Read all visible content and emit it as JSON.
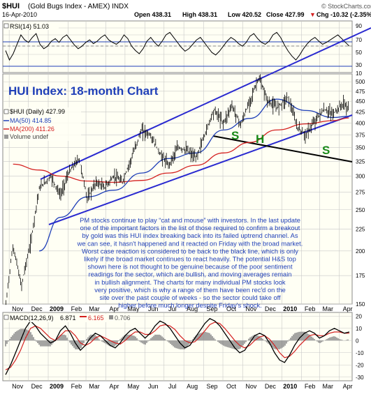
{
  "header": {
    "symbol": "$HUI",
    "name": "(Gold Bugs Index - AMEX) INDX",
    "date": "16-Apr-2010",
    "open": "Open 438.31",
    "high": "High 438.31",
    "low": "Low 420.52",
    "close": "Close 427.99",
    "change": "Chg -10.32 (-2.35%)",
    "change_arrow": "▼",
    "copyright": "© StockCharts.com"
  },
  "rsi_panel": {
    "label": "RSI(14) 51.03",
    "ticks": [
      "90",
      "70",
      "50",
      "30",
      "10"
    ]
  },
  "main_panel": {
    "title": "HUI Index: 18-month Chart",
    "legend": [
      {
        "text": "$HUI (Daily) 427.99",
        "color": "#000000"
      },
      {
        "text": "MA(50) 414.85",
        "color": "#1f3fb8"
      },
      {
        "text": "MA(200) 411.26",
        "color": "#d42020"
      },
      {
        "text": "Volume undef",
        "color": "#888888"
      }
    ],
    "ticks": [
      "500",
      "475",
      "450",
      "425",
      "400",
      "375",
      "350",
      "325",
      "300",
      "275",
      "250",
      "225",
      "200",
      "175",
      "150"
    ],
    "pattern_labels": [
      "S",
      "H",
      "S"
    ],
    "commentary": [
      "PM stocks continue to play “cat and mouse” with investors. In the last update",
      "one of the important factors in the list of those required to confirm a breakout",
      "by gold was this HUI index breaking back into its failed uptrend channel. As",
      "we can see, it hasn't happened and it reacted on Friday with the broad market.",
      "Worst case reaction is considered to be back to the black line, which is only",
      "likely if the broad market continues to react heavily. The potential H&S top",
      "shown here is not thought to be genuine because of the poor sentiment",
      "readings for the sector, which are bullish, and moving averages remain",
      "in bullish alignment. The charts for many individual PM stocks look",
      "very positive, which is why a range of them have been rec'd on the",
      "site over the past couple of weeks - so the sector could take off",
      "higher before much longer despite Friday's shock."
    ]
  },
  "macd_panel": {
    "label_prefix": "MACD(12,26,9)",
    "value1": "6.871",
    "value2": "6.165",
    "value3": "0.706",
    "ticks": [
      "20",
      "10",
      "0",
      "-10",
      "-20",
      "-30"
    ]
  },
  "x_axis": {
    "labels": [
      "Nov",
      "Dec",
      "2009",
      "Feb",
      "Mar",
      "Apr",
      "May",
      "Jun",
      "Jul",
      "Aug",
      "Sep",
      "Oct",
      "Nov",
      "Dec",
      "2010",
      "Feb",
      "Mar",
      "Apr"
    ]
  },
  "colors": {
    "panel_bg": "#fffff4",
    "grid": "#c8c8c8",
    "price": "#000000",
    "ma50": "#1f3fb8",
    "ma200": "#d42020",
    "channel": "#2a2ad0",
    "black_line": "#000000",
    "title": "#1f3fb8",
    "commentary": "#1f3fb8",
    "pattern": "#1a8a1a",
    "rsi": "#000000",
    "rsi_bands": "#1f3fb8",
    "macd_line": "#000000",
    "macd_signal": "#d42020",
    "histogram": "#8d8d8d"
  },
  "chart_data": {
    "type": "line",
    "title": "HUI Index: 18-month Chart",
    "y_scale": "log",
    "ylim": [
      150,
      510
    ],
    "x_range": [
      "Nov 2008",
      "Apr 2010"
    ],
    "series": [
      {
        "name": "$HUI (Daily)",
        "points": [
          [
            "2008-10-27",
            150
          ],
          [
            "2008-11-07",
            205
          ],
          [
            "2008-11-20",
            165
          ],
          [
            "2008-12-05",
            210
          ],
          [
            "2008-12-18",
            280
          ],
          [
            "2009-01-05",
            300
          ],
          [
            "2009-01-20",
            270
          ],
          [
            "2009-02-02",
            305
          ],
          [
            "2009-02-18",
            330
          ],
          [
            "2009-03-03",
            265
          ],
          [
            "2009-03-17",
            290
          ],
          [
            "2009-03-30",
            282
          ],
          [
            "2009-04-14",
            300
          ],
          [
            "2009-04-27",
            290
          ],
          [
            "2009-05-11",
            330
          ],
          [
            "2009-05-27",
            385
          ],
          [
            "2009-06-09",
            375
          ],
          [
            "2009-06-24",
            340
          ],
          [
            "2009-07-08",
            318
          ],
          [
            "2009-07-23",
            350
          ],
          [
            "2009-08-06",
            345
          ],
          [
            "2009-08-20",
            330
          ],
          [
            "2009-09-04",
            380
          ],
          [
            "2009-09-17",
            430
          ],
          [
            "2009-10-02",
            400
          ],
          [
            "2009-10-15",
            440
          ],
          [
            "2009-10-29",
            395
          ],
          [
            "2009-11-12",
            450
          ],
          [
            "2009-11-26",
            510
          ],
          [
            "2009-12-10",
            450
          ],
          [
            "2009-12-24",
            435
          ],
          [
            "2010-01-11",
            460
          ],
          [
            "2010-01-25",
            390
          ],
          [
            "2010-02-08",
            375
          ],
          [
            "2010-02-22",
            405
          ],
          [
            "2010-03-08",
            430
          ],
          [
            "2010-03-22",
            420
          ],
          [
            "2010-04-08",
            445
          ],
          [
            "2010-04-16",
            428
          ]
        ]
      },
      {
        "name": "MA(50)",
        "points": [
          [
            "2008-12-18",
            200
          ],
          [
            "2009-01-20",
            240
          ],
          [
            "2009-03-03",
            268
          ],
          [
            "2009-04-14",
            278
          ],
          [
            "2009-05-27",
            305
          ],
          [
            "2009-07-08",
            330
          ],
          [
            "2009-08-20",
            340
          ],
          [
            "2009-10-02",
            385
          ],
          [
            "2009-11-12",
            410
          ],
          [
            "2009-12-24",
            455
          ],
          [
            "2010-02-08",
            428
          ],
          [
            "2010-03-22",
            412
          ],
          [
            "2010-04-16",
            415
          ]
        ]
      },
      {
        "name": "MA(200)",
        "points": [
          [
            "2008-11-07",
            320
          ],
          [
            "2008-12-18",
            310
          ],
          [
            "2009-01-20",
            300
          ],
          [
            "2009-03-03",
            292
          ],
          [
            "2009-04-14",
            290
          ],
          [
            "2009-05-27",
            293
          ],
          [
            "2009-07-08",
            305
          ],
          [
            "2009-08-20",
            318
          ],
          [
            "2009-10-02",
            340
          ],
          [
            "2009-11-12",
            360
          ],
          [
            "2009-12-24",
            385
          ],
          [
            "2010-02-08",
            398
          ],
          [
            "2010-03-22",
            405
          ],
          [
            "2010-04-16",
            411
          ]
        ]
      }
    ],
    "rsi": {
      "name": "RSI(14)",
      "last": 51.03,
      "ylim": [
        10,
        90
      ],
      "values": [
        45,
        30,
        40,
        55,
        70,
        62,
        58,
        66,
        72,
        55,
        48,
        52,
        60,
        64,
        58,
        66,
        70,
        62,
        54,
        48,
        52,
        58,
        62,
        56,
        60,
        66,
        70,
        62,
        58,
        55,
        60,
        70,
        64,
        52,
        45,
        40,
        48,
        60,
        66,
        58,
        52,
        60,
        70,
        74,
        66,
        58,
        50,
        44,
        48,
        55,
        62,
        66,
        58,
        50,
        42,
        38,
        44,
        52,
        60,
        66,
        62,
        56,
        52,
        58,
        68,
        72,
        64,
        58,
        55,
        60,
        70,
        74,
        66,
        54,
        44,
        36,
        30,
        38,
        48,
        56,
        62,
        66,
        60,
        55,
        58,
        62,
        66,
        70,
        64,
        58,
        52
      ]
    },
    "macd": {
      "name": "MACD(12,26,9)",
      "values": [
        6.871,
        6.165,
        0.706
      ],
      "ylim": [
        -30,
        20
      ],
      "line": [
        -28,
        -20,
        -10,
        0,
        10,
        16,
        12,
        6,
        2,
        -2,
        0,
        8,
        12,
        6,
        -2,
        -8,
        -4,
        2,
        6,
        4,
        0,
        -4,
        -6,
        -2,
        4,
        8,
        10,
        6,
        2,
        6,
        12,
        16,
        14,
        10,
        4,
        -2,
        -6,
        -4,
        2,
        8,
        14,
        18,
        16,
        12,
        6,
        0,
        -6,
        -10,
        -8,
        -2,
        4,
        6,
        4,
        -2,
        -10,
        -16,
        -18,
        -12,
        -4,
        2,
        6,
        8,
        6,
        2,
        4,
        8,
        10,
        8,
        6,
        7
      ],
      "signal": [
        -24,
        -22,
        -16,
        -8,
        2,
        10,
        12,
        10,
        6,
        2,
        0,
        4,
        8,
        8,
        4,
        -2,
        -4,
        -2,
        2,
        4,
        2,
        0,
        -2,
        -3,
        0,
        4,
        7,
        7,
        5,
        5,
        8,
        12,
        13,
        12,
        9,
        4,
        0,
        -2,
        -1,
        3,
        8,
        13,
        15,
        14,
        10,
        5,
        0,
        -4,
        -6,
        -4,
        0,
        3,
        4,
        1,
        -4,
        -10,
        -14,
        -13,
        -9,
        -4,
        0,
        4,
        5,
        4,
        4,
        6,
        7,
        7,
        6,
        6
      ]
    }
  }
}
